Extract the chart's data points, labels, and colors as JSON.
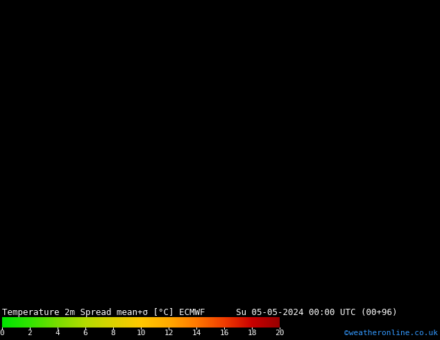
{
  "title_left": "Temperature 2m Spread mean+σ [°C] ECMWF",
  "title_right": "Su 05-05-2024 00:00 UTC (00+96)",
  "credit": "©weatheronline.co.uk",
  "colorbar_colors": [
    "#00e400",
    "#32e400",
    "#7adc00",
    "#b4dc00",
    "#dcd200",
    "#ffc800",
    "#ffaa00",
    "#ff7800",
    "#f03c00",
    "#c80000",
    "#960000"
  ],
  "colorbar_tick_values": [
    0,
    2,
    4,
    6,
    8,
    10,
    12,
    14,
    16,
    18,
    20
  ],
  "title_fontsize": 9,
  "credit_fontsize": 8,
  "tick_fontsize": 8,
  "lon_min": 3.0,
  "lon_max": 35.0,
  "lat_min": 54.0,
  "lat_max": 72.0,
  "contour_levels": [
    -5,
    0,
    5,
    10,
    15
  ],
  "vmin": 0,
  "vmax": 20,
  "map_bg_color": "#00c800",
  "ocean_color": "#1a1a1a",
  "border_color": "#404040"
}
